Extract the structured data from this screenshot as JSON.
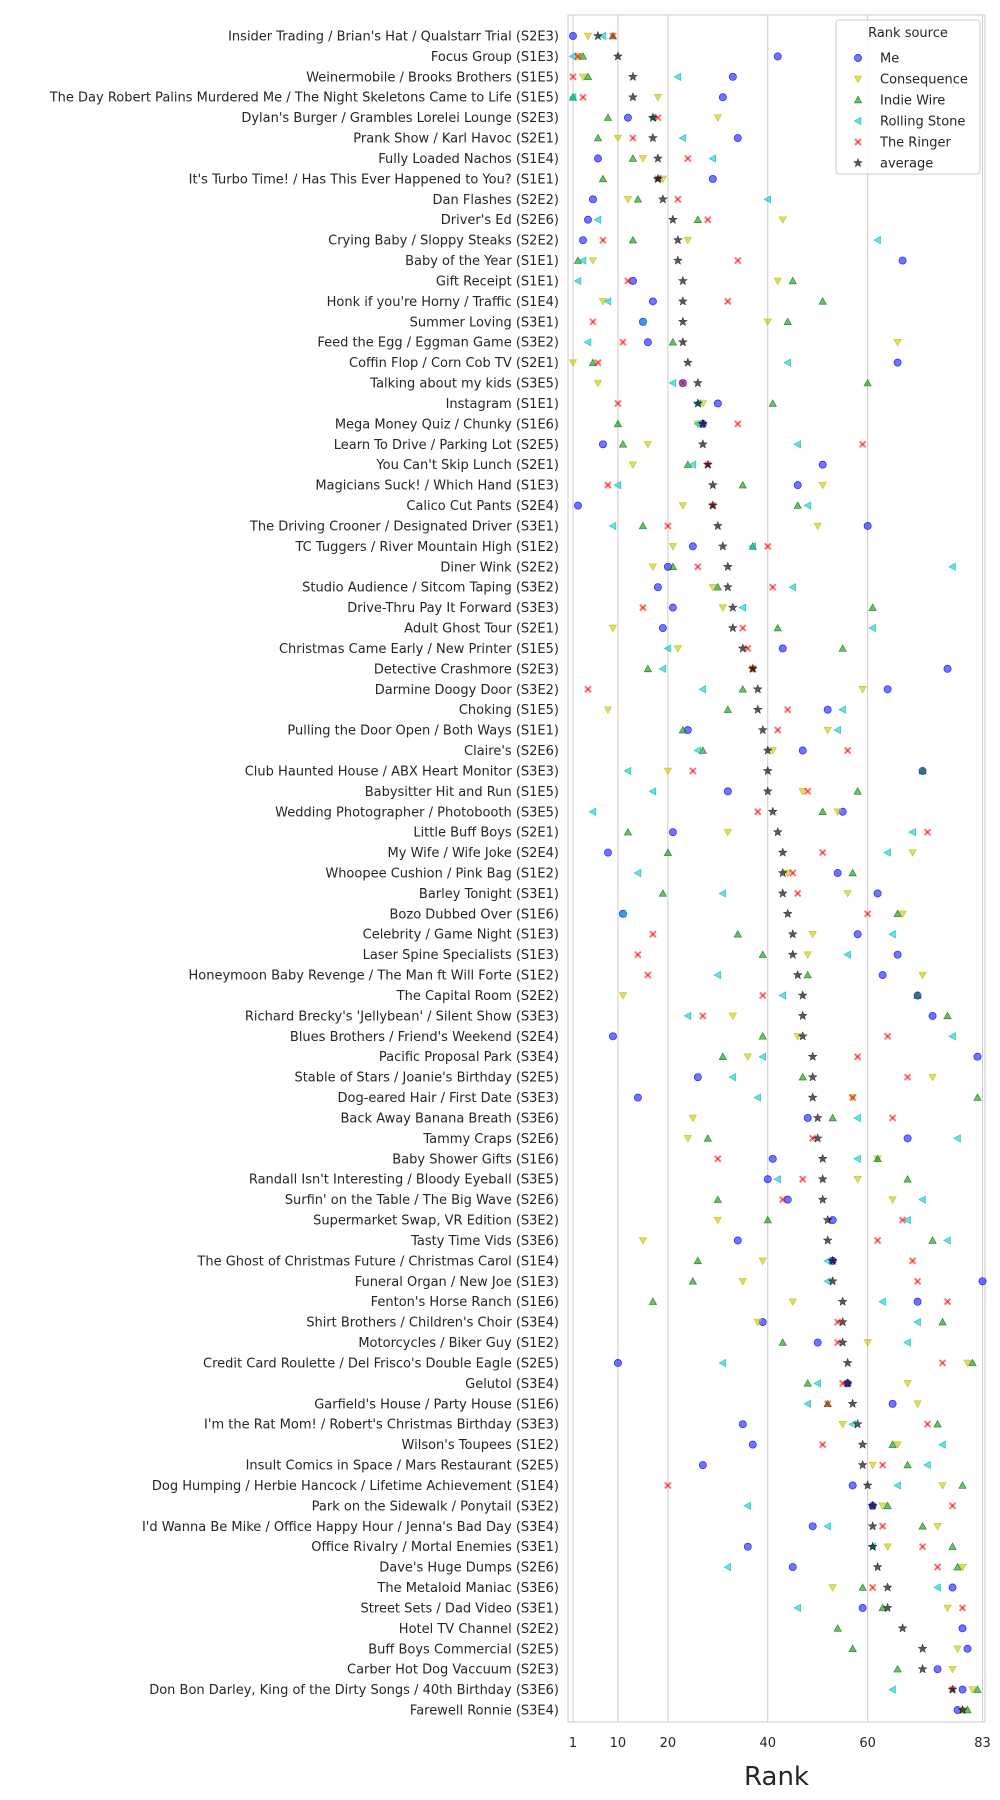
{
  "chart_data": {
    "type": "scatter",
    "xlabel": "Rank",
    "xlim": [
      0,
      83.5
    ],
    "xticks": [
      1,
      10,
      20,
      40,
      60,
      83
    ],
    "grid": "vertical",
    "legend": {
      "title": "Rank source",
      "placement": "top-right"
    },
    "series": [
      {
        "name": "Me",
        "marker": "circle",
        "color": "#0000ff"
      },
      {
        "name": "Consequence",
        "marker": "triangle-down",
        "color": "#bfbf00"
      },
      {
        "name": "Indie Wire",
        "marker": "triangle-up",
        "color": "#008000"
      },
      {
        "name": "Rolling Stone",
        "marker": "triangle-left",
        "color": "#00bfbf"
      },
      {
        "name": "The Ringer",
        "marker": "x",
        "color": "#ff0000"
      },
      {
        "name": "average",
        "marker": "star",
        "color": "#000000"
      }
    ],
    "categories": [
      {
        "label": "Insider Trading / Brian's Hat / Qualstarr Trial (S2E3)",
        "values": [
          1,
          4,
          9,
          7,
          9,
          6
        ]
      },
      {
        "label": "Focus Group (S1E3)",
        "values": [
          42,
          2,
          3,
          1,
          2,
          10
        ]
      },
      {
        "label": "Weinermobile / Brooks Brothers (S1E5)",
        "values": [
          33,
          3,
          4,
          22,
          1,
          13
        ]
      },
      {
        "label": "The Day Robert Palins Murdered Me / The Night Skeletons Came to Life (S1E5)",
        "values": [
          31,
          18,
          1,
          1,
          3,
          13
        ]
      },
      {
        "label": "Dylan's Burger / Grambles Lorelei Lounge (S2E3)",
        "values": [
          12,
          30,
          8,
          17,
          18,
          17
        ]
      },
      {
        "label": "Prank Show / Karl Havoc (S2E1)",
        "values": [
          34,
          10,
          6,
          23,
          13,
          17
        ]
      },
      {
        "label": "Fully Loaded Nachos (S1E4)",
        "values": [
          6,
          15,
          13,
          29,
          24,
          18
        ]
      },
      {
        "label": "It's Turbo Time! / Has This Ever Happened to You? (S1E1)",
        "values": [
          29,
          19,
          7,
          18,
          18,
          18
        ]
      },
      {
        "label": "Dan Flashes (S2E2)",
        "values": [
          5,
          12,
          14,
          40,
          22,
          19
        ]
      },
      {
        "label": "Driver's Ed (S2E6)",
        "values": [
          4,
          43,
          26,
          6,
          28,
          21
        ]
      },
      {
        "label": "Crying Baby / Sloppy Steaks (S2E2)",
        "values": [
          3,
          24,
          13,
          62,
          7,
          22
        ]
      },
      {
        "label": "Baby of the Year (S1E1)",
        "values": [
          67,
          5,
          2,
          3,
          34,
          22
        ]
      },
      {
        "label": "Gift Receipt (S1E1)",
        "values": [
          13,
          42,
          45,
          2,
          12,
          23
        ]
      },
      {
        "label": "Honk if you're Horny / Traffic (S1E4)",
        "values": [
          17,
          7,
          51,
          8,
          32,
          23
        ]
      },
      {
        "label": "Summer Loving (S3E1)",
        "values": [
          15,
          40,
          44,
          15,
          5,
          23
        ]
      },
      {
        "label": "Feed the Egg / Eggman Game (S3E2)",
        "values": [
          16,
          66,
          21,
          4,
          11,
          23
        ]
      },
      {
        "label": "Coffin Flop / Corn Cob TV (S2E1)",
        "values": [
          66,
          1,
          5,
          44,
          6,
          24
        ]
      },
      {
        "label": "Talking about my kids (S3E5)",
        "values": [
          23,
          6,
          60,
          21,
          23,
          26
        ]
      },
      {
        "label": "Instagram (S1E1)",
        "values": [
          30,
          27,
          41,
          26,
          10,
          26
        ]
      },
      {
        "label": "Mega Money Quiz / Chunky (S1E6)",
        "values": [
          27,
          26,
          10,
          26,
          34,
          27
        ]
      },
      {
        "label": "Learn To Drive / Parking Lot (S2E5)",
        "values": [
          7,
          16,
          11,
          46,
          59,
          27
        ]
      },
      {
        "label": "You Can't Skip Lunch (S2E1)",
        "values": [
          51,
          13,
          24,
          25,
          28,
          28
        ]
      },
      {
        "label": "Magicians Suck! / Which Hand (S1E3)",
        "values": [
          46,
          51,
          35,
          10,
          8,
          29
        ]
      },
      {
        "label": "Calico Cut Pants (S2E4)",
        "values": [
          2,
          23,
          46,
          48,
          29,
          29
        ]
      },
      {
        "label": "The Driving Crooner / Designated Driver (S3E1)",
        "values": [
          60,
          50,
          15,
          9,
          20,
          30
        ]
      },
      {
        "label": "TC Tuggers / River Mountain High (S1E2)",
        "values": [
          25,
          21,
          37,
          37,
          40,
          31
        ]
      },
      {
        "label": "Diner Wink (S2E2)",
        "values": [
          20,
          17,
          21,
          77,
          26,
          32
        ]
      },
      {
        "label": "Studio Audience / Sitcom Taping (S3E2)",
        "values": [
          18,
          29,
          30,
          45,
          41,
          32
        ]
      },
      {
        "label": "Drive-Thru Pay It Forward (S3E3)",
        "values": [
          21,
          31,
          61,
          35,
          15,
          33
        ]
      },
      {
        "label": "Adult Ghost Tour (S2E1)",
        "values": [
          19,
          9,
          42,
          61,
          35,
          33
        ]
      },
      {
        "label": "Christmas Came Early / New Printer (S1E5)",
        "values": [
          43,
          22,
          55,
          20,
          36,
          35
        ]
      },
      {
        "label": "Detective Crashmore (S2E3)",
        "values": [
          76,
          37,
          16,
          19,
          37,
          37
        ]
      },
      {
        "label": "Darmine Doogy Door (S3E2)",
        "values": [
          64,
          59,
          35,
          27,
          4,
          38
        ]
      },
      {
        "label": "Choking (S1E5)",
        "values": [
          52,
          8,
          32,
          55,
          44,
          38
        ]
      },
      {
        "label": "Pulling the Door Open / Both Ways (S1E1)",
        "values": [
          24,
          52,
          23,
          54,
          42,
          39
        ]
      },
      {
        "label": "Claire's (S2E6)",
        "values": [
          47,
          41,
          27,
          26,
          56,
          40
        ]
      },
      {
        "label": "Club Haunted House / ABX Heart Monitor (S3E3)",
        "values": [
          71,
          20,
          71,
          12,
          25,
          40
        ]
      },
      {
        "label": "Babysitter Hit and Run (S1E5)",
        "values": [
          32,
          47,
          58,
          17,
          48,
          40
        ]
      },
      {
        "label": "Wedding Photographer / Photobooth (S3E5)",
        "values": [
          55,
          54,
          51,
          5,
          38,
          41
        ]
      },
      {
        "label": "Little Buff Boys (S2E1)",
        "values": [
          21,
          32,
          12,
          69,
          72,
          42
        ]
      },
      {
        "label": "My Wife / Wife Joke (S2E4)",
        "values": [
          8,
          69,
          20,
          64,
          51,
          43
        ]
      },
      {
        "label": "Whoopee Cushion / Pink Bag (S1E2)",
        "values": [
          54,
          44,
          57,
          14,
          45,
          43
        ]
      },
      {
        "label": "Barley Tonight (S3E1)",
        "values": [
          62,
          56,
          19,
          31,
          46,
          43
        ]
      },
      {
        "label": "Bozo Dubbed Over (S1E6)",
        "values": [
          11,
          67,
          66,
          11,
          60,
          44
        ]
      },
      {
        "label": "Celebrity / Game Night (S1E3)",
        "values": [
          58,
          49,
          34,
          65,
          17,
          45
        ]
      },
      {
        "label": "Laser Spine Specialists (S1E3)",
        "values": [
          66,
          48,
          39,
          56,
          14,
          45
        ]
      },
      {
        "label": "Honeymoon Baby Revenge / The Man ft Will Forte (S1E2)",
        "values": [
          63,
          71,
          48,
          30,
          16,
          46
        ]
      },
      {
        "label": "The Capital Room (S2E2)",
        "values": [
          70,
          11,
          70,
          43,
          39,
          47
        ]
      },
      {
        "label": "Richard Brecky's 'Jellybean' / Silent Show (S3E3)",
        "values": [
          73,
          33,
          76,
          24,
          27,
          47
        ]
      },
      {
        "label": "Blues Brothers / Friend's Weekend (S2E4)",
        "values": [
          9,
          46,
          39,
          77,
          64,
          47
        ]
      },
      {
        "label": "Pacific Proposal Park (S3E4)",
        "values": [
          82,
          36,
          31,
          39,
          58,
          49
        ]
      },
      {
        "label": "Stable of Stars / Joanie's Birthday (S2E5)",
        "values": [
          26,
          73,
          47,
          33,
          68,
          49
        ]
      },
      {
        "label": "Dog-eared Hair / First Date (S3E3)",
        "values": [
          14,
          57,
          82,
          38,
          57,
          49
        ]
      },
      {
        "label": "Back Away Banana Breath (S3E6)",
        "values": [
          48,
          25,
          53,
          58,
          65,
          50
        ]
      },
      {
        "label": "Tammy Craps (S2E6)",
        "values": [
          68,
          24,
          28,
          78,
          49,
          50
        ]
      },
      {
        "label": "Baby Shower Gifts (S1E6)",
        "values": [
          41,
          62,
          62,
          58,
          30,
          51
        ]
      },
      {
        "label": "Randall Isn't Interesting / Bloody Eyeball (S3E5)",
        "values": [
          40,
          58,
          68,
          42,
          47,
          51
        ]
      },
      {
        "label": "Surfin' on the Table / The Big Wave (S2E6)",
        "values": [
          44,
          65,
          30,
          71,
          43,
          51
        ]
      },
      {
        "label": "Supermarket Swap, VR Edition (S3E2)",
        "values": [
          53,
          30,
          40,
          68,
          67,
          52
        ]
      },
      {
        "label": "Tasty Time Vids (S3E6)",
        "values": [
          34,
          15,
          73,
          76,
          62,
          52
        ]
      },
      {
        "label": "The Ghost of Christmas Future / Christmas Carol (S1E4)",
        "values": [
          53,
          39,
          26,
          52,
          69,
          53
        ]
      },
      {
        "label": "Funeral Organ / New Joe (S1E3)",
        "values": [
          83,
          35,
          25,
          52,
          70,
          53
        ]
      },
      {
        "label": "Fenton's Horse Ranch (S1E6)",
        "values": [
          70,
          45,
          17,
          63,
          76,
          55
        ]
      },
      {
        "label": "Shirt Brothers / Children's Choir (S3E4)",
        "values": [
          39,
          38,
          75,
          70,
          54,
          55
        ]
      },
      {
        "label": "Motorcycles / Biker Guy (S1E2)",
        "values": [
          50,
          60,
          43,
          68,
          54,
          55
        ]
      },
      {
        "label": "Credit Card Roulette / Del Frisco's Double Eagle (S2E5)",
        "values": [
          10,
          80,
          81,
          31,
          75,
          56
        ]
      },
      {
        "label": "Gelutol (S3E4)",
        "values": [
          56,
          68,
          48,
          50,
          55,
          56
        ]
      },
      {
        "label": "Garfield's House / Party House (S1E6)",
        "values": [
          65,
          70,
          52,
          48,
          52,
          57
        ]
      },
      {
        "label": "I'm the Rat Mom! / Robert's Christmas Birthday (S3E3)",
        "values": [
          35,
          55,
          74,
          57,
          72,
          58
        ]
      },
      {
        "label": "Wilson's Toupees (S1E2)",
        "values": [
          37,
          66,
          65,
          75,
          51,
          59
        ]
      },
      {
        "label": "Insult Comics in Space / Mars Restaurant (S2E5)",
        "values": [
          27,
          61,
          68,
          72,
          63,
          59
        ]
      },
      {
        "label": "Dog Humping / Herbie Hancock / Lifetime Achievement (S1E4)",
        "values": [
          57,
          75,
          79,
          66,
          20,
          60
        ]
      },
      {
        "label": "Park on the Sidewalk / Ponytail (S3E2)",
        "values": [
          61,
          63,
          64,
          36,
          77,
          61
        ]
      },
      {
        "label": "I'd Wanna Be Mike / Office Happy Hour / Jenna's Bad Day (S3E4)",
        "values": [
          49,
          74,
          71,
          52,
          63,
          61
        ]
      },
      {
        "label": "Office Rivalry / Mortal Enemies (S3E1)",
        "values": [
          36,
          64,
          77,
          61,
          71,
          61
        ]
      },
      {
        "label": "Dave's Huge Dumps (S2E6)",
        "values": [
          45,
          79,
          78,
          32,
          74,
          62
        ]
      },
      {
        "label": "The Metaloid Maniac (S3E6)",
        "values": [
          77,
          53,
          59,
          74,
          61,
          64
        ]
      },
      {
        "label": "Street Sets / Dad Video (S3E1)",
        "values": [
          59,
          76,
          63,
          46,
          79,
          64
        ]
      },
      {
        "label": "Hotel TV Channel (S2E2)",
        "values": [
          79,
          null,
          54,
          null,
          null,
          67
        ]
      },
      {
        "label": "Buff Boys Commercial (S2E5)",
        "values": [
          80,
          78,
          57,
          null,
          null,
          71
        ]
      },
      {
        "label": "Carber Hot Dog Vaccuum (S2E3)",
        "values": [
          74,
          77,
          66,
          null,
          null,
          71
        ]
      },
      {
        "label": "Don Bon Darley, King of the Dirty Songs / 40th Birthday (S3E6)",
        "values": [
          79,
          81,
          82,
          65,
          77,
          77
        ]
      },
      {
        "label": "Farewell Ronnie (S3E4)",
        "values": [
          78,
          79,
          80,
          null,
          null,
          79
        ]
      }
    ]
  }
}
